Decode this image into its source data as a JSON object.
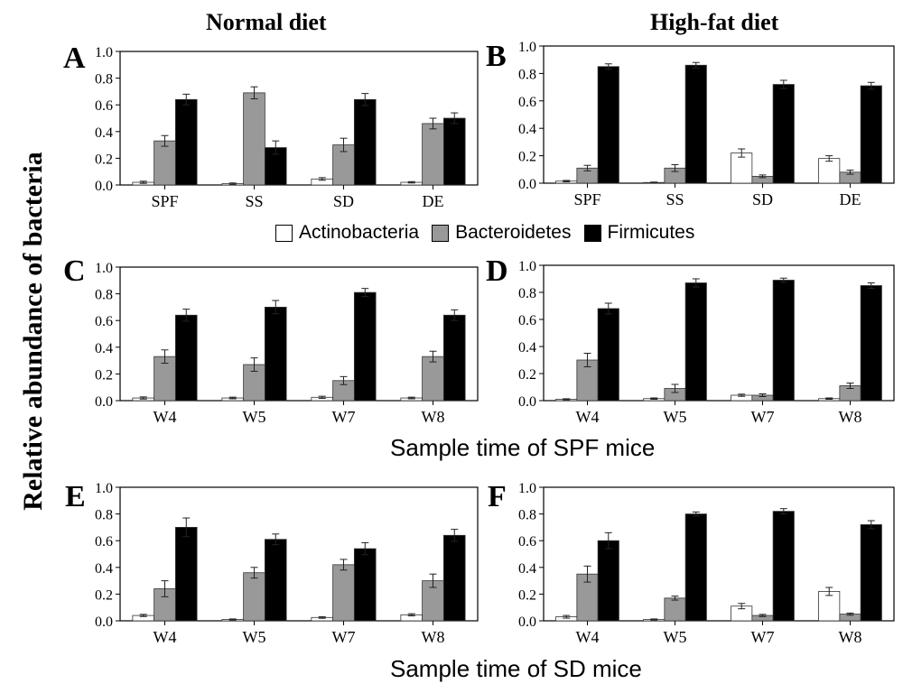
{
  "headings": {
    "left": "Normal diet",
    "right": "High-fat diet"
  },
  "y_axis_title": "Relative abundance of bacteria",
  "x_titles": {
    "spf": "Sample time of SPF mice",
    "sd": "Sample time of SD mice"
  },
  "legend": [
    {
      "label": "Actinobacteria",
      "color": "#ffffff"
    },
    {
      "label": "Bacteroidetes",
      "color": "#999999"
    },
    {
      "label": "Firmicutes",
      "color": "#000000"
    }
  ],
  "chart_data": [
    {
      "type": "bar",
      "panel": "A",
      "categories": [
        "SPF",
        "SS",
        "SD",
        "DE"
      ],
      "ylim": [
        0,
        1.0
      ],
      "yticks": [
        "0.0",
        "0.2",
        "0.4",
        "0.6",
        "0.8",
        "1.0"
      ],
      "series": [
        {
          "name": "Actinobacteria",
          "values": [
            0.02,
            0.01,
            0.045,
            0.02
          ],
          "errors": [
            0.008,
            0.005,
            0.01,
            0.005
          ]
        },
        {
          "name": "Bacteroidetes",
          "values": [
            0.33,
            0.69,
            0.3,
            0.46
          ],
          "errors": [
            0.04,
            0.045,
            0.05,
            0.04
          ]
        },
        {
          "name": "Firmicutes",
          "values": [
            0.64,
            0.28,
            0.64,
            0.5
          ],
          "errors": [
            0.04,
            0.05,
            0.045,
            0.04
          ]
        }
      ]
    },
    {
      "type": "bar",
      "panel": "B",
      "categories": [
        "SPF",
        "SS",
        "SD",
        "DE"
      ],
      "ylim": [
        0,
        1.0
      ],
      "yticks": [
        "0.0",
        "0.2",
        "0.4",
        "0.6",
        "0.8",
        "1.0"
      ],
      "series": [
        {
          "name": "Actinobacteria",
          "values": [
            0.015,
            0.005,
            0.22,
            0.18
          ],
          "errors": [
            0.005,
            0.003,
            0.03,
            0.02
          ]
        },
        {
          "name": "Bacteroidetes",
          "values": [
            0.11,
            0.11,
            0.05,
            0.08
          ],
          "errors": [
            0.02,
            0.025,
            0.01,
            0.015
          ]
        },
        {
          "name": "Firmicutes",
          "values": [
            0.85,
            0.86,
            0.72,
            0.71
          ],
          "errors": [
            0.02,
            0.02,
            0.03,
            0.025
          ]
        }
      ]
    },
    {
      "type": "bar",
      "panel": "C",
      "categories": [
        "W4",
        "W5",
        "W7",
        "W8"
      ],
      "ylim": [
        0,
        1.0
      ],
      "yticks": [
        "0.0",
        "0.2",
        "0.4",
        "0.6",
        "0.8",
        "1.0"
      ],
      "series": [
        {
          "name": "Actinobacteria",
          "values": [
            0.02,
            0.02,
            0.025,
            0.02
          ],
          "errors": [
            0.008,
            0.006,
            0.008,
            0.006
          ]
        },
        {
          "name": "Bacteroidetes",
          "values": [
            0.33,
            0.27,
            0.15,
            0.33
          ],
          "errors": [
            0.05,
            0.05,
            0.03,
            0.04
          ]
        },
        {
          "name": "Firmicutes",
          "values": [
            0.64,
            0.7,
            0.81,
            0.64
          ],
          "errors": [
            0.045,
            0.05,
            0.03,
            0.04
          ]
        }
      ]
    },
    {
      "type": "bar",
      "panel": "D",
      "categories": [
        "W4",
        "W5",
        "W7",
        "W8"
      ],
      "ylim": [
        0,
        1.0
      ],
      "yticks": [
        "0.0",
        "0.2",
        "0.4",
        "0.6",
        "0.8",
        "1.0"
      ],
      "series": [
        {
          "name": "Actinobacteria",
          "values": [
            0.01,
            0.015,
            0.04,
            0.015
          ],
          "errors": [
            0.004,
            0.005,
            0.008,
            0.005
          ]
        },
        {
          "name": "Bacteroidetes",
          "values": [
            0.3,
            0.09,
            0.04,
            0.11
          ],
          "errors": [
            0.05,
            0.03,
            0.01,
            0.02
          ]
        },
        {
          "name": "Firmicutes",
          "values": [
            0.68,
            0.87,
            0.89,
            0.85
          ],
          "errors": [
            0.04,
            0.03,
            0.015,
            0.02
          ]
        }
      ]
    },
    {
      "type": "bar",
      "panel": "E",
      "categories": [
        "W4",
        "W5",
        "W7",
        "W8"
      ],
      "ylim": [
        0,
        1.0
      ],
      "yticks": [
        "0.0",
        "0.2",
        "0.4",
        "0.6",
        "0.8",
        "1.0"
      ],
      "series": [
        {
          "name": "Actinobacteria",
          "values": [
            0.04,
            0.01,
            0.025,
            0.045
          ],
          "errors": [
            0.008,
            0.004,
            0.006,
            0.008
          ]
        },
        {
          "name": "Bacteroidetes",
          "values": [
            0.24,
            0.36,
            0.42,
            0.3
          ],
          "errors": [
            0.06,
            0.04,
            0.04,
            0.05
          ]
        },
        {
          "name": "Firmicutes",
          "values": [
            0.7,
            0.61,
            0.54,
            0.64
          ],
          "errors": [
            0.07,
            0.04,
            0.045,
            0.045
          ]
        }
      ]
    },
    {
      "type": "bar",
      "panel": "F",
      "categories": [
        "W4",
        "W5",
        "W7",
        "W8"
      ],
      "ylim": [
        0,
        1.0
      ],
      "yticks": [
        "0.0",
        "0.2",
        "0.4",
        "0.6",
        "0.8",
        "1.0"
      ],
      "series": [
        {
          "name": "Actinobacteria",
          "values": [
            0.03,
            0.01,
            0.11,
            0.22
          ],
          "errors": [
            0.01,
            0.004,
            0.02,
            0.03
          ]
        },
        {
          "name": "Bacteroidetes",
          "values": [
            0.35,
            0.17,
            0.04,
            0.05
          ],
          "errors": [
            0.06,
            0.015,
            0.008,
            0.008
          ]
        },
        {
          "name": "Firmicutes",
          "values": [
            0.6,
            0.8,
            0.82,
            0.72
          ],
          "errors": [
            0.06,
            0.015,
            0.02,
            0.03
          ]
        }
      ]
    }
  ]
}
